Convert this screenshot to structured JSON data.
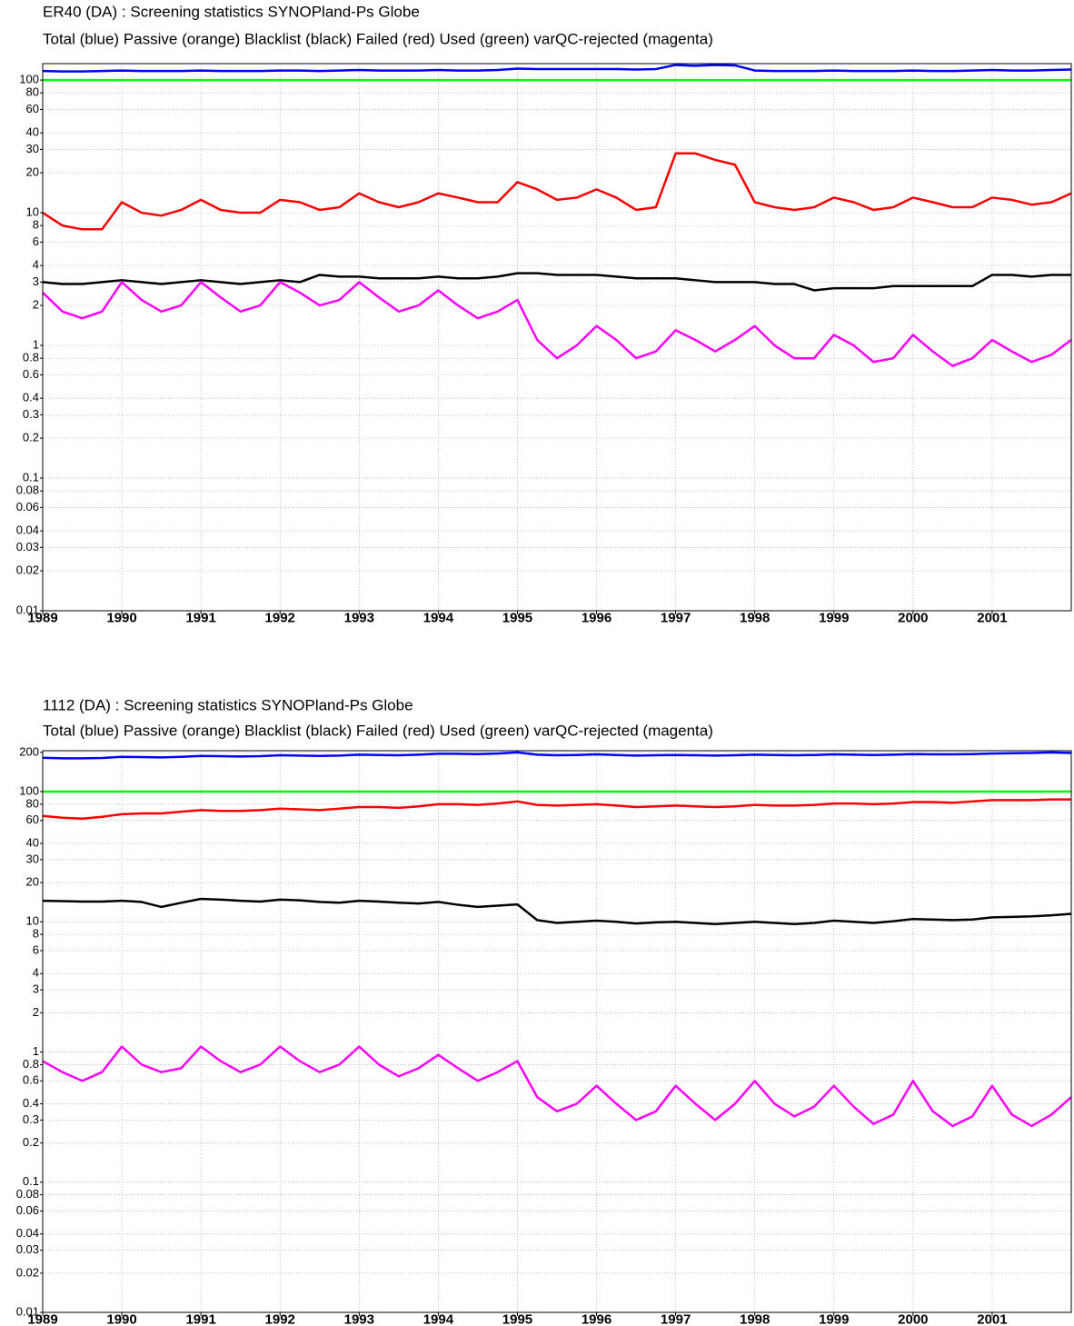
{
  "chart_data": [
    {
      "type": "line",
      "title": "ER40 (DA)  : Screening statistics  SYNOPland-Ps  Globe",
      "subtitle": "Total (blue) Passive (orange) Blacklist (black) Failed (red) Used (green) varQC-rejected (magenta)",
      "log_y": true,
      "grid": true,
      "xlim": [
        1989,
        2002
      ],
      "xticks": [
        1989,
        1990,
        1991,
        1992,
        1993,
        1994,
        1995,
        1996,
        1997,
        1998,
        1999,
        2000,
        2001
      ],
      "ylim": [
        0.01,
        133
      ],
      "yticks": [
        0.01,
        0.02,
        0.03,
        0.04,
        0.06,
        0.08,
        0.1,
        0.2,
        0.3,
        0.4,
        0.6,
        0.8,
        1,
        2,
        3,
        4,
        6,
        8,
        10,
        20,
        30,
        40,
        60,
        80,
        100
      ],
      "x": [
        1989,
        1989.25,
        1989.5,
        1989.75,
        1990,
        1990.25,
        1990.5,
        1990.75,
        1991,
        1991.25,
        1991.5,
        1991.75,
        1992,
        1992.25,
        1992.5,
        1992.75,
        1993,
        1993.25,
        1993.5,
        1993.75,
        1994,
        1994.25,
        1994.5,
        1994.75,
        1995,
        1995.25,
        1995.5,
        1995.75,
        1996,
        1996.25,
        1996.5,
        1996.75,
        1997,
        1997.25,
        1997.5,
        1997.75,
        1998,
        1998.25,
        1998.5,
        1998.75,
        1999,
        1999.25,
        1999.5,
        1999.75,
        2000,
        2000.25,
        2000.5,
        2000.75,
        2001,
        2001.25,
        2001.5,
        2001.75,
        2002
      ],
      "series": [
        {
          "color": "#00ff00",
          "values": [
            100,
            100,
            100,
            100,
            100,
            100,
            100,
            100,
            100,
            100,
            100,
            100,
            100,
            100,
            100,
            100,
            100,
            100,
            100,
            100,
            100,
            100,
            100,
            100,
            100,
            100,
            100,
            100,
            100,
            100,
            100,
            100,
            100,
            100,
            100,
            100,
            100,
            100,
            100,
            100,
            100,
            100,
            100,
            100,
            100,
            100,
            100,
            100,
            100,
            100,
            100,
            100,
            100
          ]
        },
        {
          "color": "#0000ff",
          "values": [
            117,
            116,
            116,
            117,
            118,
            117,
            117,
            117,
            118,
            117,
            117,
            117,
            118,
            118,
            117,
            118,
            119,
            118,
            118,
            118,
            119,
            118,
            118,
            119,
            122,
            121,
            121,
            121,
            121,
            121,
            120,
            121,
            130,
            128,
            130,
            129,
            118,
            117,
            117,
            117,
            118,
            117,
            117,
            117,
            118,
            117,
            117,
            118,
            119,
            118,
            118,
            119,
            120
          ]
        },
        {
          "color": "#ff0000",
          "values": [
            10,
            8,
            7.5,
            7.5,
            12,
            10,
            9.5,
            10.5,
            12.5,
            10.5,
            10,
            10,
            12.5,
            12,
            10.5,
            11,
            14,
            12,
            11,
            12,
            14,
            13,
            12,
            12,
            17,
            15,
            12.5,
            13,
            15,
            13,
            10.5,
            11,
            28,
            28,
            25,
            23,
            12,
            11,
            10.5,
            11,
            13,
            12,
            10.5,
            11,
            13,
            12,
            11,
            11,
            13,
            12.5,
            11.5,
            12,
            14
          ]
        },
        {
          "color": "#000000",
          "values": [
            3,
            2.9,
            2.9,
            3,
            3.1,
            3,
            2.9,
            3,
            3.1,
            3,
            2.9,
            3,
            3.1,
            3,
            3.4,
            3.3,
            3.3,
            3.2,
            3.2,
            3.2,
            3.3,
            3.2,
            3.2,
            3.3,
            3.5,
            3.5,
            3.4,
            3.4,
            3.4,
            3.3,
            3.2,
            3.2,
            3.2,
            3.1,
            3,
            3,
            3,
            2.9,
            2.9,
            2.6,
            2.7,
            2.7,
            2.7,
            2.8,
            2.8,
            2.8,
            2.8,
            2.8,
            3.4,
            3.4,
            3.3,
            3.4,
            3.4
          ]
        },
        {
          "color": "#ff00ff",
          "values": [
            2.5,
            1.8,
            1.6,
            1.8,
            3,
            2.2,
            1.8,
            2,
            3,
            2.3,
            1.8,
            2,
            3,
            2.5,
            2,
            2.2,
            3,
            2.3,
            1.8,
            2,
            2.6,
            2,
            1.6,
            1.8,
            2.2,
            1.1,
            0.8,
            1,
            1.4,
            1.1,
            0.8,
            0.9,
            1.3,
            1.1,
            0.9,
            1.1,
            1.4,
            1,
            0.8,
            0.8,
            1.2,
            1,
            0.75,
            0.8,
            1.2,
            0.9,
            0.7,
            0.8,
            1.1,
            0.9,
            0.75,
            0.85,
            1.1
          ]
        }
      ]
    },
    {
      "type": "line",
      "title": "1112 (DA)  : Screening statistics  SYNOPland-Ps  Globe",
      "subtitle": "Total (blue) Passive (orange) Blacklist (black) Failed (red) Used (green) varQC-rejected (magenta)",
      "log_y": true,
      "grid": true,
      "xlim": [
        1989,
        2002
      ],
      "xticks": [
        1989,
        1990,
        1991,
        1992,
        1993,
        1994,
        1995,
        1996,
        1997,
        1998,
        1999,
        2000,
        2001
      ],
      "ylim": [
        0.01,
        206
      ],
      "yticks": [
        0.01,
        0.02,
        0.03,
        0.04,
        0.06,
        0.08,
        0.1,
        0.2,
        0.3,
        0.4,
        0.6,
        0.8,
        1,
        2,
        3,
        4,
        6,
        8,
        10,
        20,
        30,
        40,
        60,
        80,
        100,
        200
      ],
      "x": [
        1989,
        1989.25,
        1989.5,
        1989.75,
        1990,
        1990.25,
        1990.5,
        1990.75,
        1991,
        1991.25,
        1991.5,
        1991.75,
        1992,
        1992.25,
        1992.5,
        1992.75,
        1993,
        1993.25,
        1993.5,
        1993.75,
        1994,
        1994.25,
        1994.5,
        1994.75,
        1995,
        1995.25,
        1995.5,
        1995.75,
        1996,
        1996.25,
        1996.5,
        1996.75,
        1997,
        1997.25,
        1997.5,
        1997.75,
        1998,
        1998.25,
        1998.5,
        1998.75,
        1999,
        1999.25,
        1999.5,
        1999.75,
        2000,
        2000.25,
        2000.5,
        2000.75,
        2001,
        2001.25,
        2001.5,
        2001.75,
        2002
      ],
      "series": [
        {
          "color": "#00ff00",
          "values": [
            100,
            100,
            100,
            100,
            100,
            100,
            100,
            100,
            100,
            100,
            100,
            100,
            100,
            100,
            100,
            100,
            100,
            100,
            100,
            100,
            100,
            100,
            100,
            100,
            100,
            100,
            100,
            100,
            100,
            100,
            100,
            100,
            100,
            100,
            100,
            100,
            100,
            100,
            100,
            100,
            100,
            100,
            100,
            100,
            100,
            100,
            100,
            100,
            100,
            100,
            100,
            100,
            100
          ]
        },
        {
          "color": "#0000ff",
          "values": [
            182,
            180,
            180,
            181,
            185,
            184,
            183,
            185,
            188,
            187,
            186,
            187,
            190,
            189,
            188,
            189,
            192,
            191,
            190,
            192,
            195,
            195,
            194,
            196,
            200,
            192,
            190,
            191,
            193,
            191,
            189,
            190,
            191,
            190,
            189,
            190,
            192,
            191,
            190,
            191,
            193,
            192,
            191,
            192,
            194,
            193,
            193,
            194,
            196,
            197,
            198,
            200,
            198
          ]
        },
        {
          "color": "#ff0000",
          "values": [
            65,
            63,
            62,
            64,
            67,
            68,
            68,
            70,
            72,
            71,
            71,
            72,
            74,
            73,
            72,
            74,
            76,
            76,
            75,
            77,
            80,
            80,
            79,
            81,
            84,
            79,
            78,
            79,
            80,
            78,
            76,
            77,
            78,
            77,
            76,
            77,
            79,
            78,
            78,
            79,
            81,
            81,
            80,
            81,
            83,
            83,
            82,
            84,
            86,
            86,
            86,
            87,
            87
          ]
        },
        {
          "color": "#000000",
          "values": [
            14.5,
            14.4,
            14.3,
            14.3,
            14.5,
            14.2,
            13,
            14,
            15,
            14.8,
            14.5,
            14.3,
            14.8,
            14.6,
            14.2,
            14,
            14.5,
            14.3,
            14,
            13.8,
            14.2,
            13.5,
            13,
            13.3,
            13.6,
            10.3,
            9.8,
            10,
            10.2,
            10,
            9.7,
            9.9,
            10,
            9.8,
            9.6,
            9.8,
            10,
            9.8,
            9.6,
            9.8,
            10.2,
            10,
            9.8,
            10.1,
            10.5,
            10.4,
            10.3,
            10.4,
            10.8,
            10.9,
            11,
            11.2,
            11.5
          ]
        },
        {
          "color": "#ff00ff",
          "values": [
            0.85,
            0.7,
            0.6,
            0.7,
            1.1,
            0.8,
            0.7,
            0.75,
            1.1,
            0.85,
            0.7,
            0.8,
            1.1,
            0.85,
            0.7,
            0.8,
            1.1,
            0.8,
            0.65,
            0.75,
            0.95,
            0.75,
            0.6,
            0.7,
            0.85,
            0.45,
            0.35,
            0.4,
            0.55,
            0.4,
            0.3,
            0.35,
            0.55,
            0.4,
            0.3,
            0.4,
            0.6,
            0.4,
            0.32,
            0.38,
            0.55,
            0.38,
            0.28,
            0.33,
            0.6,
            0.35,
            0.27,
            0.32,
            0.55,
            0.33,
            0.27,
            0.33,
            0.45
          ]
        }
      ]
    }
  ]
}
